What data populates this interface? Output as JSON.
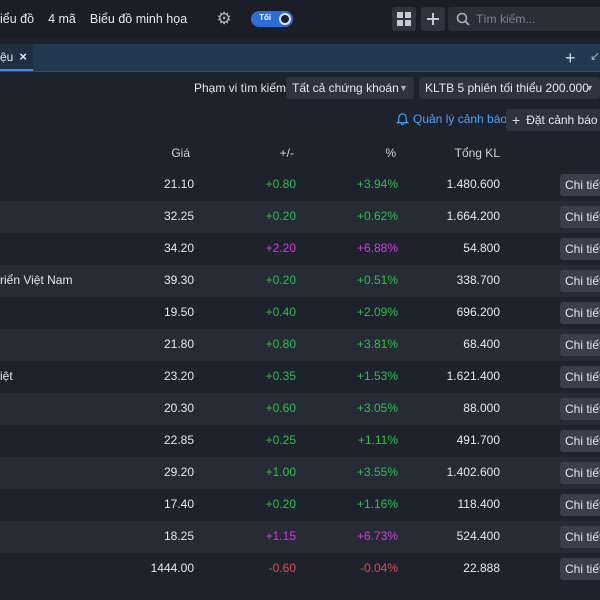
{
  "topbar": {
    "menu": [
      "iểu đồ",
      "4 mã",
      "Biểu đồ minh họa"
    ],
    "toggle_label": "Tối",
    "search_placeholder": "Tìm kiếm..."
  },
  "tabs": [
    {
      "label": "ệu",
      "close": "×"
    }
  ],
  "filter": {
    "label": "Phạm vi tìm kiếm:",
    "scope": "Tất cả chứng khoán",
    "criteria": "KLTB 5 phiên tối thiểu 200.000"
  },
  "actions": {
    "manage_alerts": "Quản lý cảnh báo",
    "set_alert": "Đặt cảnh báo"
  },
  "table": {
    "headers": {
      "price": "Giá",
      "change": "+/-",
      "percent": "%",
      "volume": "Tổng KL"
    },
    "detail_label": "Chi tiết",
    "rows": [
      {
        "name": "",
        "price": "21.10",
        "change": "+0.80",
        "percent": "+3.94%",
        "volume": "1.480.600",
        "trend": "up"
      },
      {
        "name": "",
        "price": "32.25",
        "change": "+0.20",
        "percent": "+0.62%",
        "volume": "1.664.200",
        "trend": "up"
      },
      {
        "name": "",
        "price": "34.20",
        "change": "+2.20",
        "percent": "+6.88%",
        "volume": "54.800",
        "trend": "ceil"
      },
      {
        "name": "riển Việt Nam",
        "price": "39.30",
        "change": "+0.20",
        "percent": "+0.51%",
        "volume": "338.700",
        "trend": "up"
      },
      {
        "name": "",
        "price": "19.50",
        "change": "+0.40",
        "percent": "+2.09%",
        "volume": "696.200",
        "trend": "up"
      },
      {
        "name": "",
        "price": "21.80",
        "change": "+0.80",
        "percent": "+3.81%",
        "volume": "68.400",
        "trend": "up"
      },
      {
        "name": "iệt",
        "price": "23.20",
        "change": "+0.35",
        "percent": "+1.53%",
        "volume": "1.621.400",
        "trend": "up"
      },
      {
        "name": "",
        "price": "20.30",
        "change": "+0.60",
        "percent": "+3.05%",
        "volume": "88.000",
        "trend": "up"
      },
      {
        "name": "",
        "price": "22.85",
        "change": "+0.25",
        "percent": "+1.11%",
        "volume": "491.700",
        "trend": "up"
      },
      {
        "name": "",
        "price": "29.20",
        "change": "+1.00",
        "percent": "+3.55%",
        "volume": "1.402.600",
        "trend": "up"
      },
      {
        "name": "",
        "price": "17.40",
        "change": "+0.20",
        "percent": "+1.16%",
        "volume": "118.400",
        "trend": "up"
      },
      {
        "name": "",
        "price": "18.25",
        "change": "+1.15",
        "percent": "+6.73%",
        "volume": "524.400",
        "trend": "ceil"
      },
      {
        "name": "",
        "price": "1444.00",
        "change": "-0.60",
        "percent": "-0.04%",
        "volume": "22.888",
        "trend": "down"
      }
    ]
  },
  "icons": {
    "settings": "gear-icon",
    "layout": "grid-icon",
    "add": "plus-icon",
    "search": "search-icon",
    "alert": "bell-icon"
  },
  "colors": {
    "up": "#2bc24a",
    "ceiling": "#d63be0",
    "down": "#e24a4a",
    "accent": "#4fa3f7"
  }
}
